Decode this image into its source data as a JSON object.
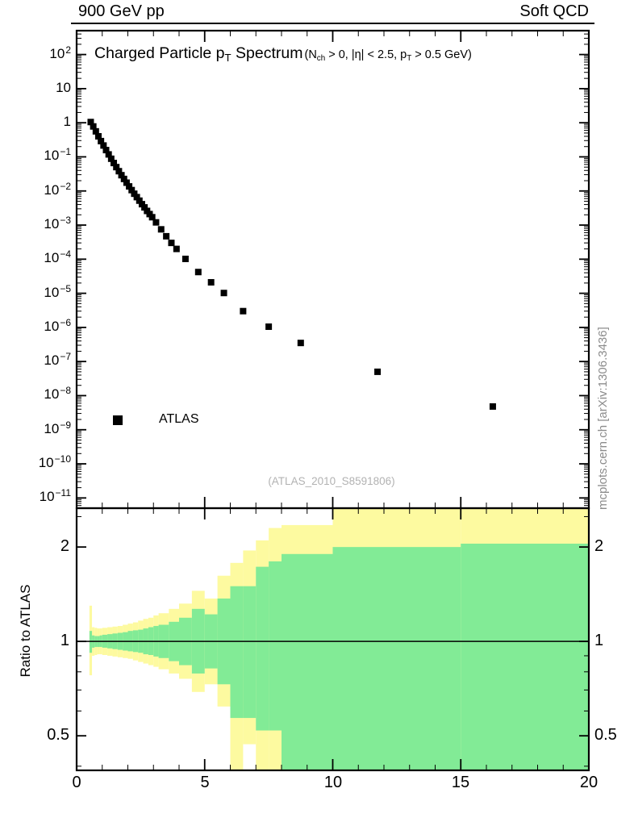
{
  "header": {
    "left": "900 GeV pp",
    "right": "Soft QCD"
  },
  "title": {
    "main_parts": [
      {
        "t": "Charged Particle p"
      },
      {
        "t": "T",
        "sub": true
      },
      {
        "t": " Spectrum"
      }
    ],
    "cuts_parts": [
      {
        "t": "(N"
      },
      {
        "t": "ch",
        "sub": true
      },
      {
        "t": " > 0, |η| < 2.5, p"
      },
      {
        "t": "T",
        "sub": true
      },
      {
        "t": " > 0.5 GeV)"
      }
    ]
  },
  "legend": {
    "label": "ATLAS",
    "marker": "filled-square"
  },
  "watermark": "(ATLAS_2010_S8591806)",
  "side_note": "mcplots.cern.ch [arXiv:1306.3436]",
  "colors": {
    "marker": "#000000",
    "band_yellow": "#fdfaa0",
    "band_green": "#82eb96",
    "watermark": "#b2b2b2",
    "side_note": "#8c8c8c",
    "frame": "#000000"
  },
  "chart_data": [
    {
      "type": "scatter",
      "panel": "top",
      "title": "Charged Particle pT Spectrum",
      "subtitle": "(Nch > 0, |eta| < 2.5, pT > 0.5 GeV)",
      "xlabel": "",
      "ylabel": "",
      "xlim": [
        0,
        20
      ],
      "y_scale": "log10",
      "ylog_range": [
        -11.3,
        2.7
      ],
      "x_ticks": [
        0,
        5,
        10,
        15,
        20
      ],
      "y_tick_exponents": [
        2,
        1,
        0,
        -1,
        -2,
        -3,
        -4,
        -5,
        -6,
        -7,
        -8,
        -9,
        -10,
        -11
      ],
      "grid": false,
      "legend_position": "left-middle",
      "series": [
        {
          "name": "ATLAS",
          "marker": "filled-square",
          "color": "#000000",
          "points": [
            [
              0.55,
              1.05
            ],
            [
              0.65,
              0.78
            ],
            [
              0.75,
              0.56
            ],
            [
              0.85,
              0.4
            ],
            [
              0.95,
              0.29
            ],
            [
              1.05,
              0.215
            ],
            [
              1.15,
              0.158
            ],
            [
              1.25,
              0.118
            ],
            [
              1.35,
              0.088
            ],
            [
              1.45,
              0.066
            ],
            [
              1.55,
              0.05
            ],
            [
              1.65,
              0.038
            ],
            [
              1.75,
              0.029
            ],
            [
              1.85,
              0.0225
            ],
            [
              1.95,
              0.0175
            ],
            [
              2.05,
              0.0136
            ],
            [
              2.15,
              0.0106
            ],
            [
              2.25,
              0.0083
            ],
            [
              2.35,
              0.0066
            ],
            [
              2.45,
              0.0052
            ],
            [
              2.55,
              0.0041
            ],
            [
              2.65,
              0.0033
            ],
            [
              2.75,
              0.0026
            ],
            [
              2.85,
              0.0021
            ],
            [
              2.95,
              0.0017
            ],
            [
              3.1,
              0.0012
            ],
            [
              3.3,
              0.00075
            ],
            [
              3.5,
              0.00047
            ],
            [
              3.7,
              0.0003
            ],
            [
              3.9,
              0.0002
            ],
            [
              4.25,
              0.000102
            ],
            [
              4.75,
              4.2e-05
            ],
            [
              5.25,
              2.1e-05
            ],
            [
              5.75,
              1.02e-05
            ],
            [
              6.5,
              3e-06
            ],
            [
              7.5,
              1.05e-06
            ],
            [
              8.75,
              3.5e-07
            ],
            [
              11.75,
              5e-08
            ],
            [
              16.25,
              4.8e-09
            ]
          ]
        }
      ]
    },
    {
      "type": "area",
      "panel": "bottom",
      "ylabel": "Ratio to ATLAS",
      "y_scale": "log2",
      "ylim": [
        0.388,
        2.66
      ],
      "xlim": [
        0,
        20
      ],
      "y_ticks": [
        2,
        1,
        0.5
      ],
      "y_minor_ticks": [
        0.4,
        0.6,
        0.7,
        0.8,
        0.9,
        2.5
      ],
      "x_ticks": [
        0,
        5,
        10,
        15,
        20
      ],
      "reference_line": 1,
      "bands": [
        {
          "x": [
            0.5,
            0.6
          ],
          "yellow": [
            0.78,
            1.3
          ],
          "green": [
            0.92,
            1.08
          ]
        },
        {
          "x": [
            0.6,
            0.7
          ],
          "yellow": [
            0.9,
            1.11
          ],
          "green": [
            0.955,
            1.045
          ]
        },
        {
          "x": [
            0.7,
            0.8
          ],
          "yellow": [
            0.905,
            1.105
          ],
          "green": [
            0.96,
            1.04
          ]
        },
        {
          "x": [
            0.8,
            0.9
          ],
          "yellow": [
            0.91,
            1.1
          ],
          "green": [
            0.96,
            1.04
          ]
        },
        {
          "x": [
            0.9,
            1.0
          ],
          "yellow": [
            0.91,
            1.1
          ],
          "green": [
            0.96,
            1.045
          ]
        },
        {
          "x": [
            1.0,
            1.2
          ],
          "yellow": [
            0.905,
            1.105
          ],
          "green": [
            0.955,
            1.05
          ]
        },
        {
          "x": [
            1.2,
            1.4
          ],
          "yellow": [
            0.9,
            1.11
          ],
          "green": [
            0.95,
            1.055
          ]
        },
        {
          "x": [
            1.4,
            1.6
          ],
          "yellow": [
            0.895,
            1.115
          ],
          "green": [
            0.945,
            1.06
          ]
        },
        {
          "x": [
            1.6,
            1.8
          ],
          "yellow": [
            0.89,
            1.12
          ],
          "green": [
            0.94,
            1.065
          ]
        },
        {
          "x": [
            1.8,
            2.0
          ],
          "yellow": [
            0.885,
            1.13
          ],
          "green": [
            0.935,
            1.07
          ]
        },
        {
          "x": [
            2.0,
            2.2
          ],
          "yellow": [
            0.88,
            1.14
          ],
          "green": [
            0.93,
            1.08
          ]
        },
        {
          "x": [
            2.2,
            2.4
          ],
          "yellow": [
            0.87,
            1.15
          ],
          "green": [
            0.925,
            1.085
          ]
        },
        {
          "x": [
            2.4,
            2.6
          ],
          "yellow": [
            0.86,
            1.165
          ],
          "green": [
            0.92,
            1.09
          ]
        },
        {
          "x": [
            2.6,
            2.8
          ],
          "yellow": [
            0.85,
            1.18
          ],
          "green": [
            0.91,
            1.1
          ]
        },
        {
          "x": [
            2.8,
            3.0
          ],
          "yellow": [
            0.84,
            1.19
          ],
          "green": [
            0.905,
            1.11
          ]
        },
        {
          "x": [
            3.0,
            3.2
          ],
          "yellow": [
            0.83,
            1.21
          ],
          "green": [
            0.895,
            1.12
          ]
        },
        {
          "x": [
            3.2,
            3.6
          ],
          "yellow": [
            0.815,
            1.23
          ],
          "green": [
            0.885,
            1.13
          ]
        },
        {
          "x": [
            3.6,
            4.0
          ],
          "yellow": [
            0.79,
            1.27
          ],
          "green": [
            0.865,
            1.155
          ]
        },
        {
          "x": [
            4.0,
            4.5
          ],
          "yellow": [
            0.76,
            1.32
          ],
          "green": [
            0.84,
            1.19
          ]
        },
        {
          "x": [
            4.5,
            5.0
          ],
          "yellow": [
            0.69,
            1.45
          ],
          "green": [
            0.79,
            1.27
          ]
        },
        {
          "x": [
            5.0,
            5.5
          ],
          "yellow": [
            0.73,
            1.37
          ],
          "green": [
            0.82,
            1.22
          ]
        },
        {
          "x": [
            5.5,
            6.0
          ],
          "yellow": [
            0.62,
            1.62
          ],
          "green": [
            0.73,
            1.37
          ]
        },
        {
          "x": [
            6.0,
            6.5
          ],
          "yellow": [
            0.35,
            1.78
          ],
          "green": [
            0.57,
            1.5
          ]
        },
        {
          "x": [
            6.5,
            7.0
          ],
          "yellow": [
            0.47,
            1.95
          ],
          "green": [
            0.57,
            1.5
          ]
        },
        {
          "x": [
            7.0,
            7.5
          ],
          "yellow": [
            0.35,
            2.1
          ],
          "green": [
            0.52,
            1.73
          ]
        },
        {
          "x": [
            7.5,
            8.0
          ],
          "yellow": [
            0.35,
            2.3
          ],
          "green": [
            0.52,
            1.8
          ]
        },
        {
          "x": [
            8.0,
            10.0
          ],
          "yellow": [
            0.35,
            2.35
          ],
          "green": [
            0.35,
            1.9
          ]
        },
        {
          "x": [
            10.0,
            12.0
          ],
          "yellow": [
            0.35,
            2.7
          ],
          "green": [
            0.35,
            2.0
          ]
        },
        {
          "x": [
            12.0,
            15.0
          ],
          "yellow": [
            0.35,
            2.7
          ],
          "green": [
            0.35,
            2.0
          ]
        },
        {
          "x": [
            15.0,
            20.0
          ],
          "yellow": [
            0.35,
            2.7
          ],
          "green": [
            0.35,
            2.05
          ]
        }
      ]
    }
  ]
}
